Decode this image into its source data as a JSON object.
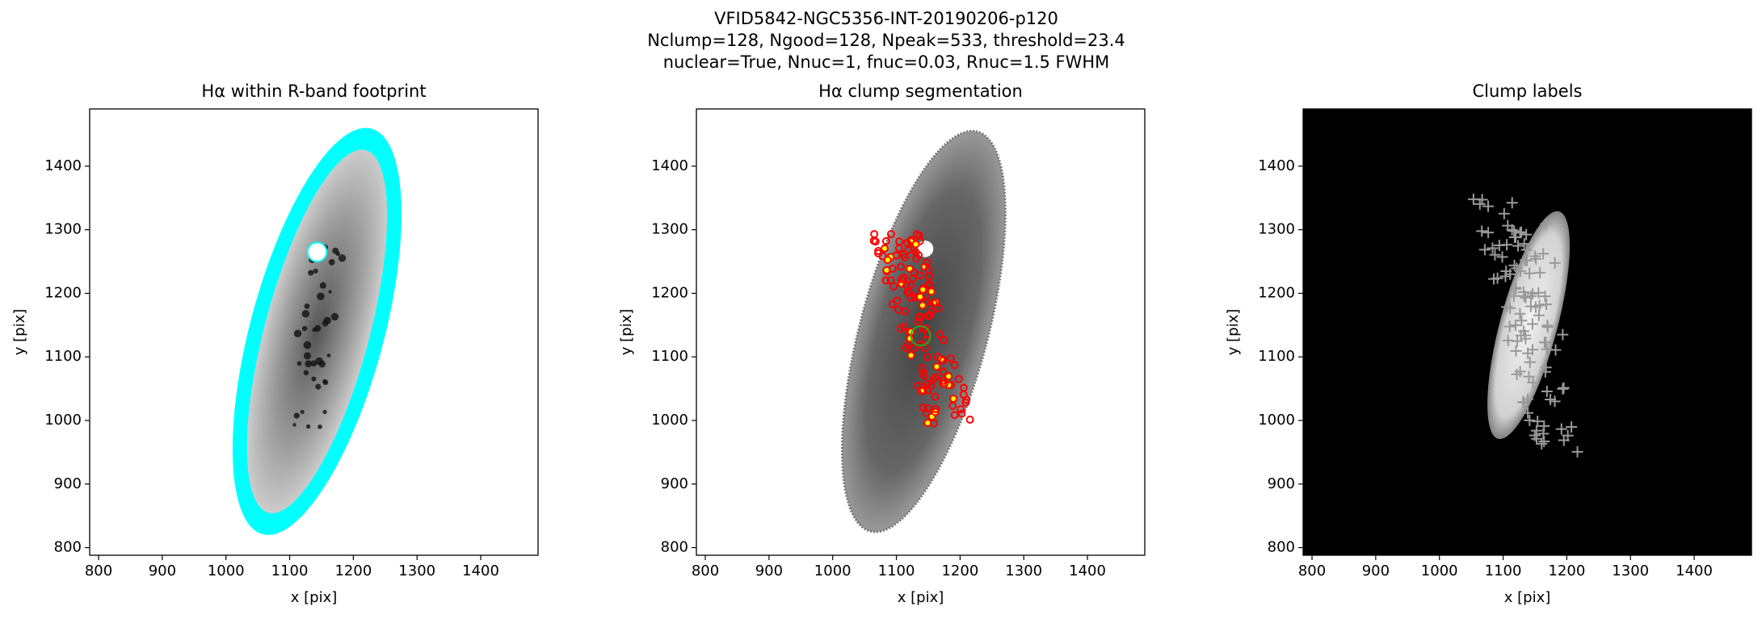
{
  "title": [
    "VFID5842-NGC5356-INT-20190206-p120",
    "Nclump=128, Ngood=128, Npeak=533, threshold=23.4",
    "nuclear=True, Nnuc=1, fnuc=0.03, Rnuc=1.5 FWHM"
  ],
  "chart_data": [
    {
      "type": "image",
      "title": "Hα within R-band footprint",
      "x_label": "x [pix]",
      "y_label": "y [pix]",
      "xlim": [
        786,
        1490
      ],
      "ylim": [
        788,
        1490
      ],
      "xticks": [
        800,
        900,
        1000,
        1100,
        1200,
        1300,
        1400
      ],
      "yticks": [
        800,
        900,
        1000,
        1100,
        1200,
        1300,
        1400
      ]
    },
    {
      "type": "image",
      "title": "Hα clump segmentation",
      "x_label": "x [pix]",
      "y_label": "y [pix]",
      "xlim": [
        786,
        1490
      ],
      "ylim": [
        788,
        1490
      ],
      "xticks": [
        800,
        900,
        1000,
        1100,
        1200,
        1300,
        1400
      ],
      "yticks": [
        800,
        900,
        1000,
        1100,
        1200,
        1300,
        1400
      ]
    },
    {
      "type": "image",
      "title": "Clump labels",
      "x_label": "x [pix]",
      "y_label": "y [pix]",
      "xlim": [
        786,
        1490
      ],
      "ylim": [
        788,
        1490
      ],
      "xticks": [
        800,
        900,
        1000,
        1100,
        1200,
        1300,
        1400
      ],
      "yticks": [
        800,
        900,
        1000,
        1100,
        1200,
        1300,
        1400
      ]
    }
  ]
}
